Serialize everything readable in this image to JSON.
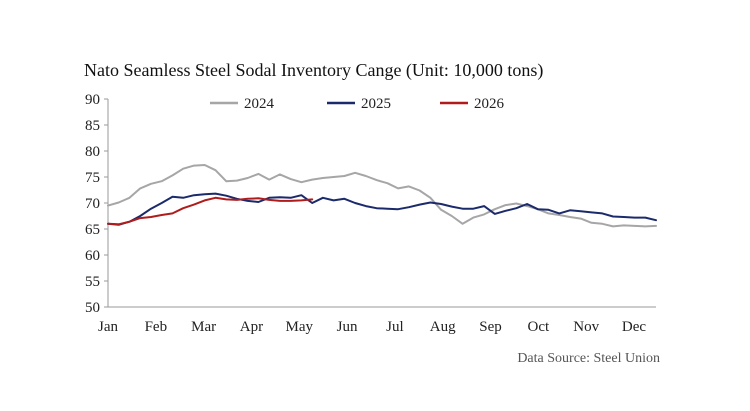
{
  "chart_data": {
    "type": "line",
    "title": "Nato Seamless Steel Sodal Inventory Cange (Unit: 10,000 tons)",
    "xlabel": "",
    "ylabel": "",
    "ylim": [
      50,
      90
    ],
    "yticks": [
      50,
      55,
      60,
      65,
      70,
      75,
      80,
      85,
      90
    ],
    "x_tick_labels": [
      "Jan",
      "Feb",
      "Mar",
      "Apr",
      "May",
      "Jun",
      "Jul",
      "Aug",
      "Sep",
      "Oct",
      "Nov",
      "Dec"
    ],
    "x_unit": "week",
    "xlim": [
      1,
      52
    ],
    "grid": false,
    "legend_position": "top",
    "source": "Data Source: Steel Union",
    "series": [
      {
        "name": "2024",
        "color": "#a6a6a6",
        "x": [
          1,
          2,
          3,
          4,
          5,
          6,
          7,
          8,
          9,
          10,
          11,
          12,
          13,
          14,
          15,
          16,
          17,
          18,
          19,
          20,
          21,
          22,
          23,
          24,
          25,
          26,
          27,
          28,
          29,
          30,
          31,
          32,
          33,
          34,
          35,
          36,
          37,
          38,
          39,
          40,
          41,
          42,
          43,
          44,
          45,
          46,
          47,
          48,
          49,
          50,
          51,
          52
        ],
        "values": [
          69.5,
          70.1,
          71.0,
          72.8,
          73.7,
          74.2,
          75.3,
          76.6,
          77.2,
          77.3,
          76.3,
          74.2,
          74.3,
          74.8,
          75.6,
          74.5,
          75.5,
          74.6,
          74.0,
          74.5,
          74.8,
          75.0,
          75.2,
          75.8,
          75.2,
          74.4,
          73.8,
          72.8,
          73.2,
          72.4,
          71.0,
          68.7,
          67.5,
          66.0,
          67.2,
          67.8,
          68.8,
          69.6,
          69.9,
          69.4,
          68.8,
          68.0,
          67.7,
          67.3,
          67.0,
          66.2,
          66.0,
          65.5,
          65.7,
          65.6,
          65.5,
          65.6
        ]
      },
      {
        "name": "2025",
        "color": "#1b2a6b",
        "x": [
          1,
          2,
          3,
          4,
          5,
          6,
          7,
          8,
          9,
          10,
          11,
          12,
          13,
          14,
          15,
          16,
          17,
          18,
          19,
          20,
          21,
          22,
          23,
          24,
          25,
          26,
          27,
          28,
          29,
          30,
          31,
          32,
          33,
          34,
          35,
          36,
          37,
          38,
          39,
          40,
          41,
          42,
          43,
          44,
          45,
          46,
          47,
          48,
          49,
          50,
          51,
          52
        ],
        "values": [
          66.0,
          65.8,
          66.4,
          67.5,
          68.9,
          70.0,
          71.2,
          71.0,
          71.5,
          71.7,
          71.8,
          71.4,
          70.8,
          70.4,
          70.2,
          71.0,
          71.1,
          71.0,
          71.5,
          70.0,
          71.0,
          70.5,
          70.8,
          70.0,
          69.4,
          69.0,
          68.9,
          68.8,
          69.2,
          69.7,
          70.1,
          69.8,
          69.3,
          68.9,
          68.9,
          69.4,
          67.9,
          68.5,
          69.0,
          69.8,
          68.8,
          68.7,
          68.0,
          68.6,
          68.4,
          68.2,
          68.0,
          67.4,
          67.3,
          67.2,
          67.2,
          66.7
        ]
      },
      {
        "name": "2026",
        "color": "#b01c1c",
        "x": [
          1,
          2,
          3,
          4,
          5,
          6,
          7,
          8,
          9,
          10,
          11,
          12,
          13,
          14,
          15,
          16,
          17,
          18,
          19,
          20
        ],
        "values": [
          66.0,
          65.9,
          66.4,
          67.1,
          67.3,
          67.7,
          68.0,
          69.0,
          69.7,
          70.5,
          71.0,
          70.7,
          70.6,
          70.8,
          70.9,
          70.6,
          70.4,
          70.4,
          70.5,
          70.7
        ]
      }
    ]
  }
}
